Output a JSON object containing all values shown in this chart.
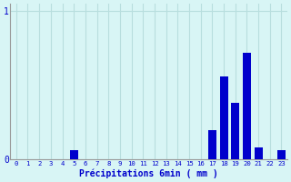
{
  "xlabel": "Précipitations 6min ( mm )",
  "categories": [
    0,
    1,
    2,
    3,
    4,
    5,
    6,
    7,
    8,
    9,
    10,
    11,
    12,
    13,
    14,
    15,
    16,
    17,
    18,
    19,
    20,
    21,
    22,
    23
  ],
  "values": [
    0,
    0,
    0,
    0,
    0,
    0.06,
    0,
    0,
    0,
    0,
    0,
    0,
    0,
    0,
    0,
    0,
    0,
    0.2,
    0.56,
    0.38,
    0.72,
    0.08,
    0,
    0.06
  ],
  "bar_color": "#0000cc",
  "bg_color": "#d8f5f5",
  "grid_color": "#b8dede",
  "text_color": "#0000cc",
  "ylim": [
    0,
    1.05
  ],
  "yticks": [
    0,
    1
  ],
  "ytick_labels": [
    "0",
    "1"
  ],
  "xlim": [
    -0.5,
    23.5
  ]
}
